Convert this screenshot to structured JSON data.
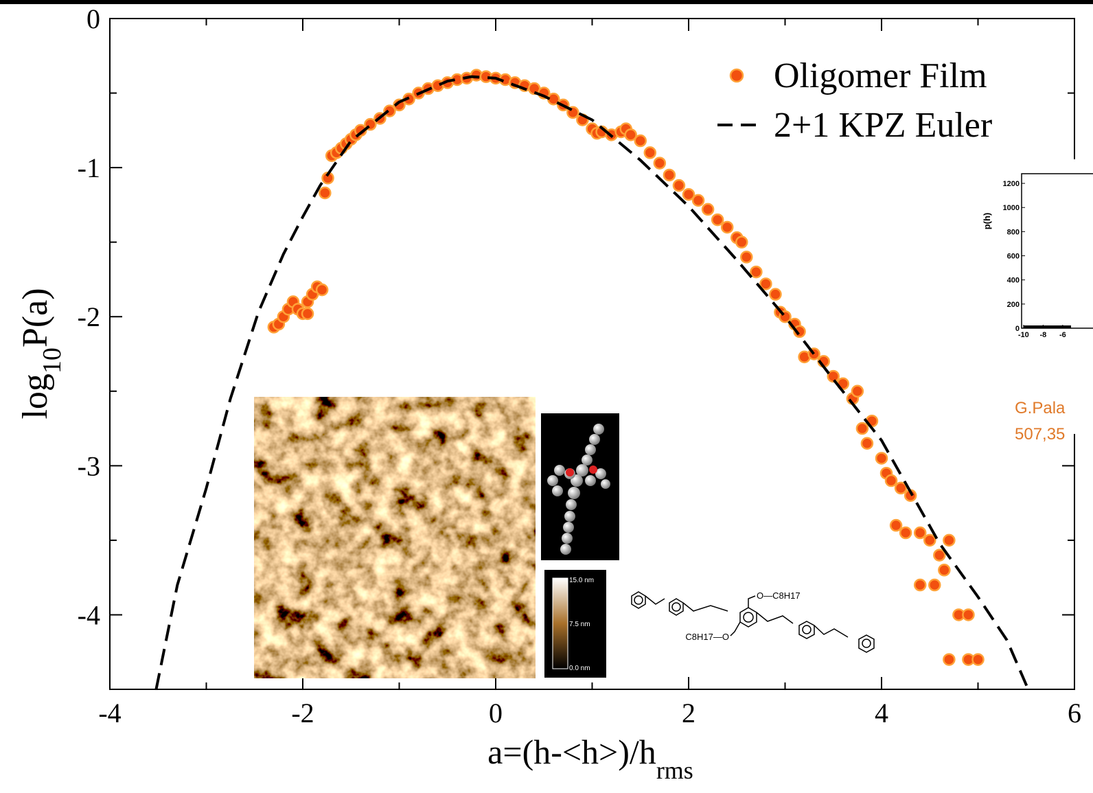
{
  "chart_data": {
    "type": "scatter",
    "xlabel": [
      "a=(h-<h>)/h",
      "rms"
    ],
    "ylabel": [
      "log",
      "10",
      "P(a)"
    ],
    "xlim": [
      -4,
      6
    ],
    "ylim": [
      -4.5,
      0
    ],
    "xticks": [
      -4,
      -2,
      0,
      2,
      4,
      6
    ],
    "yticks": [
      0,
      -1,
      -2,
      -3,
      -4
    ],
    "legend": "top-right",
    "series": [
      {
        "name": "Oligomer Film",
        "type": "scatter",
        "color": "#f2500f",
        "x": [
          -2.3,
          -2.25,
          -2.2,
          -2.15,
          -2.1,
          -2.05,
          -2.0,
          -1.95,
          -1.95,
          -1.9,
          -1.85,
          -1.8,
          -1.77,
          -1.74,
          -1.7,
          -1.65,
          -1.6,
          -1.55,
          -1.5,
          -1.45,
          -1.4,
          -1.3,
          -1.2,
          -1.1,
          -1.0,
          -0.9,
          -0.8,
          -0.7,
          -0.6,
          -0.5,
          -0.4,
          -0.3,
          -0.2,
          -0.1,
          0,
          0.1,
          0.2,
          0.3,
          0.4,
          0.5,
          0.6,
          0.7,
          0.8,
          0.9,
          1.0,
          1.05,
          1.1,
          1.2,
          1.3,
          1.35,
          1.4,
          1.5,
          1.6,
          1.7,
          1.8,
          1.9,
          2.0,
          2.1,
          2.2,
          2.3,
          2.4,
          2.5,
          2.55,
          2.6,
          2.7,
          2.8,
          2.9,
          2.95,
          3.0,
          3.1,
          3.15,
          3.2,
          3.3,
          3.4,
          3.5,
          3.6,
          3.7,
          3.75,
          3.8,
          3.85,
          3.9,
          4.0,
          4.05,
          4.1,
          4.15,
          4.2,
          4.25,
          4.3,
          4.4,
          4.4,
          4.5,
          4.55,
          4.6,
          4.65,
          4.7,
          4.7,
          4.8,
          4.9,
          4.9,
          5.0
        ],
        "values": [
          -2.07,
          -2.05,
          -2.0,
          -1.95,
          -1.9,
          -1.95,
          -1.98,
          -1.9,
          -1.98,
          -1.85,
          -1.8,
          -1.82,
          -1.17,
          -1.07,
          -0.92,
          -0.9,
          -0.87,
          -0.84,
          -0.81,
          -0.78,
          -0.75,
          -0.71,
          -0.67,
          -0.62,
          -0.58,
          -0.54,
          -0.5,
          -0.47,
          -0.45,
          -0.43,
          -0.41,
          -0.4,
          -0.38,
          -0.39,
          -0.4,
          -0.41,
          -0.43,
          -0.45,
          -0.47,
          -0.5,
          -0.54,
          -0.58,
          -0.63,
          -0.68,
          -0.74,
          -0.77,
          -0.76,
          -0.78,
          -0.76,
          -0.74,
          -0.78,
          -0.82,
          -0.9,
          -0.97,
          -1.05,
          -1.12,
          -1.18,
          -1.22,
          -1.28,
          -1.35,
          -1.4,
          -1.47,
          -1.5,
          -1.6,
          -1.7,
          -1.78,
          -1.85,
          -1.97,
          -2.0,
          -2.05,
          -2.1,
          -2.27,
          -2.25,
          -2.3,
          -2.4,
          -2.45,
          -2.55,
          -2.5,
          -2.75,
          -2.85,
          -2.7,
          -2.95,
          -3.05,
          -3.1,
          -3.4,
          -3.15,
          -3.45,
          -3.2,
          -3.45,
          -3.8,
          -3.5,
          -3.8,
          -3.6,
          -3.7,
          -3.5,
          -4.3,
          -4.0,
          -4.0,
          -4.3,
          -4.3
        ]
      },
      {
        "name": "2+1 KPZ Euler",
        "type": "line",
        "color": "#000000",
        "x": [
          -3.52,
          -3.3,
          -3.0,
          -2.75,
          -2.46,
          -2.2,
          -2.0,
          -1.82,
          -1.5,
          -1.0,
          -0.5,
          -0.25,
          0,
          0.5,
          1.0,
          1.5,
          2.0,
          2.5,
          3.0,
          3.5,
          4.0,
          4.6,
          5.0,
          5.3,
          5.52
        ],
        "values": [
          -4.5,
          -3.8,
          -3.15,
          -2.55,
          -1.97,
          -1.58,
          -1.33,
          -1.12,
          -0.82,
          -0.56,
          -0.42,
          -0.39,
          -0.4,
          -0.52,
          -0.68,
          -0.95,
          -1.26,
          -1.62,
          -2.0,
          -2.42,
          -2.83,
          -3.52,
          -3.88,
          -4.17,
          -4.5
        ]
      }
    ]
  },
  "insets": {
    "colorbar_labels": [
      "15.0 nm",
      "7.5 nm",
      "0.0 nm"
    ],
    "chem_labels": [
      "O—C8H17",
      "C8H17—O"
    ],
    "side_plot": {
      "ylabel": "p(h)",
      "xlim": [
        -10.2,
        -2.9
      ],
      "ylim": [
        0,
        1280
      ],
      "yticks": [
        1200,
        1000,
        800,
        600,
        400,
        200,
        0
      ],
      "xticks": [
        -10,
        -8,
        -6
      ]
    },
    "citation": [
      "G.Pala",
      "507,35"
    ]
  }
}
